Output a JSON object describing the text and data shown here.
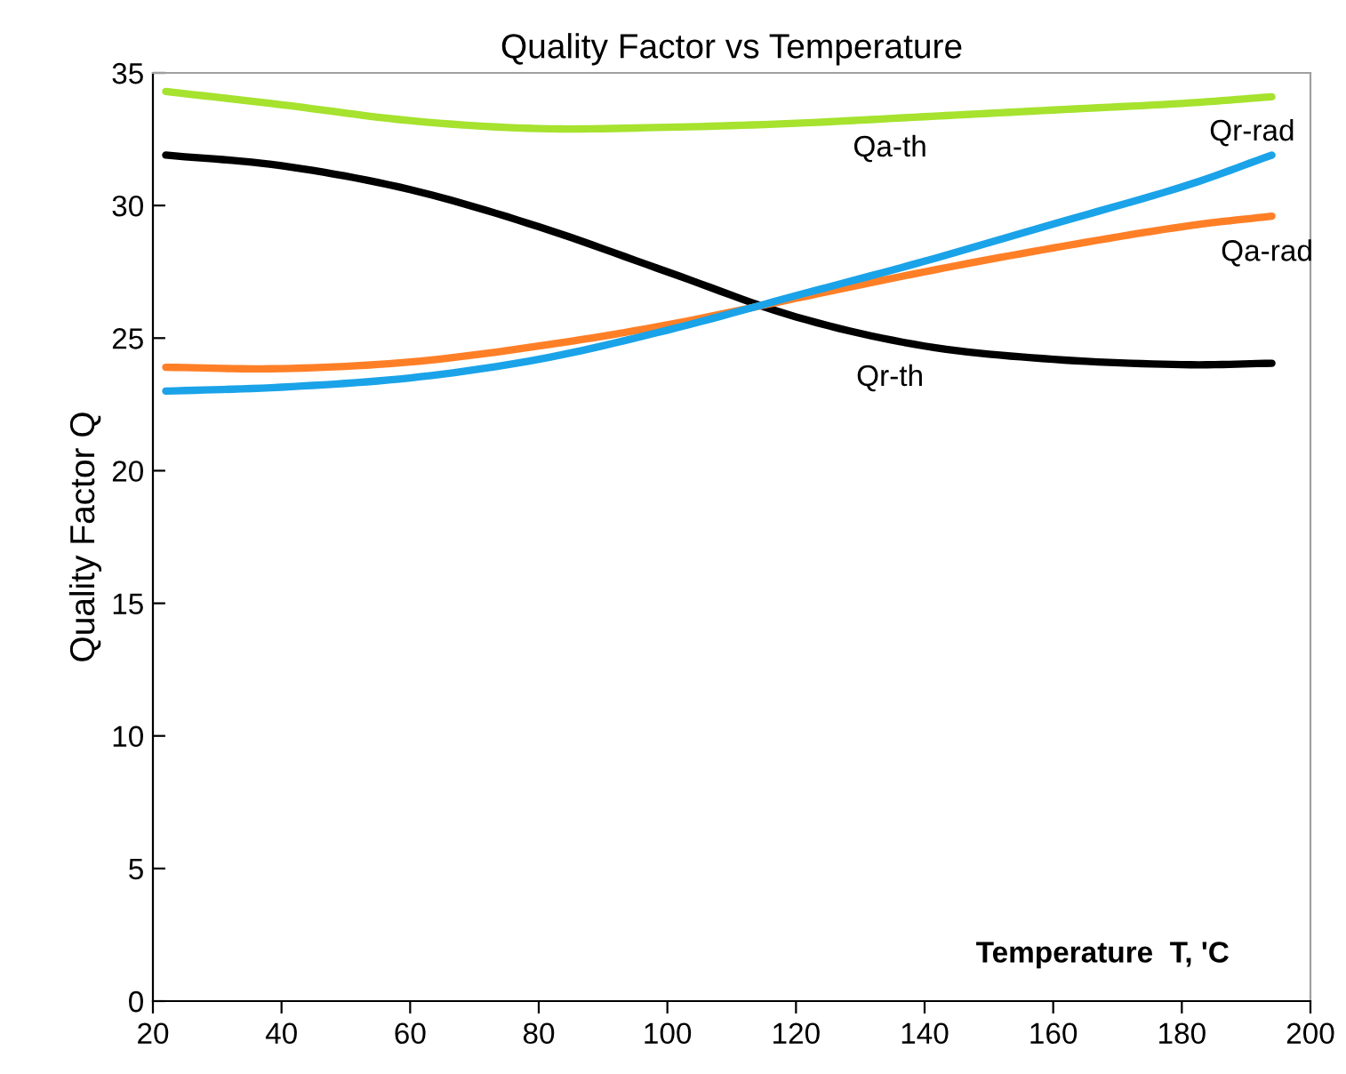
{
  "chart_data": {
    "type": "line",
    "title": "Quality Factor vs Temperature",
    "xlabel": "Temperature  T, 'C",
    "ylabel": "Quality Factor Q",
    "x": [
      22,
      40,
      60,
      80,
      100,
      120,
      140,
      160,
      180,
      194
    ],
    "series": [
      {
        "name": "Qa-th",
        "color": "#a6e22e",
        "values": [
          34.3,
          33.8,
          33.2,
          32.9,
          32.95,
          33.1,
          33.35,
          33.6,
          33.85,
          34.1
        ]
      },
      {
        "name": "Qr-th",
        "color": "#000000",
        "values": [
          31.9,
          31.5,
          30.6,
          29.2,
          27.5,
          25.8,
          24.7,
          24.2,
          24.0,
          24.05
        ]
      },
      {
        "name": "Qa-rad",
        "color": "#ff7f27",
        "values": [
          23.9,
          23.85,
          24.1,
          24.7,
          25.5,
          26.5,
          27.5,
          28.4,
          29.2,
          29.6
        ]
      },
      {
        "name": "Qr-rad",
        "color": "#1aa3e8",
        "values": [
          23.0,
          23.15,
          23.5,
          24.2,
          25.3,
          26.6,
          27.9,
          29.3,
          30.7,
          31.9
        ]
      }
    ],
    "xlim": [
      20,
      200
    ],
    "ylim": [
      0,
      35
    ],
    "xticks": [
      20,
      40,
      60,
      80,
      100,
      120,
      140,
      160,
      180,
      200
    ],
    "yticks": [
      0,
      5,
      10,
      15,
      20,
      25,
      30,
      35
    ],
    "marker": "none",
    "line_style": "solid"
  }
}
